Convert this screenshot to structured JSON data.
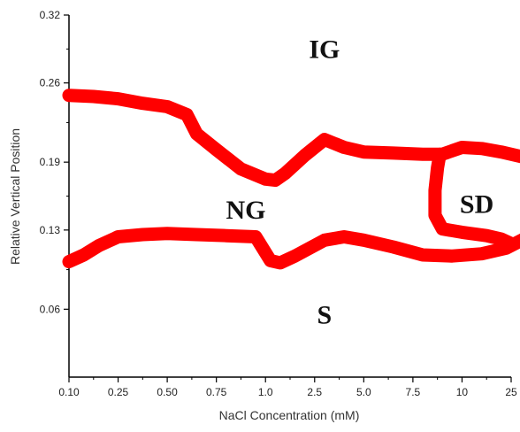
{
  "chart_data": {
    "type": "line",
    "title": "",
    "xlabel": "NaCl Concentration (mM)",
    "ylabel": "Relative Vertical Position",
    "x_tick_labels": [
      "0.10",
      "0.25",
      "0.50",
      "0.75",
      "1.0",
      "2.5",
      "5.0",
      "7.5",
      "10",
      "25"
    ],
    "y_ticks": [
      0.06,
      0.13,
      0.19,
      0.26,
      0.32
    ],
    "y_tick_labels": [
      "0.06",
      "0.13",
      "0.19",
      "0.26",
      "0.32"
    ],
    "ylim": [
      0.0,
      0.32
    ],
    "grid": false,
    "line_color": "#ff0000",
    "regions": [
      {
        "label": "IG",
        "x_index": 5.2,
        "y": 0.29
      },
      {
        "label": "NG",
        "x_index": 3.6,
        "y": 0.148
      },
      {
        "label": "SD",
        "x_index": 8.3,
        "y": 0.153
      },
      {
        "label": "S",
        "x_index": 5.2,
        "y": 0.055
      }
    ],
    "boundaries": [
      {
        "name": "",
        "points": [
          [
            0.0,
            0.249
          ],
          [
            0.5,
            0.248
          ],
          [
            1.0,
            0.246
          ],
          [
            1.5,
            0.242
          ],
          [
            2.0,
            0.239
          ],
          [
            2.4,
            0.232
          ],
          [
            2.6,
            0.215
          ],
          [
            3.0,
            0.201
          ],
          [
            3.5,
            0.184
          ],
          [
            4.0,
            0.175
          ],
          [
            4.2,
            0.174
          ],
          [
            4.4,
            0.18
          ],
          [
            4.8,
            0.196
          ],
          [
            5.2,
            0.21
          ],
          [
            5.6,
            0.203
          ],
          [
            6.0,
            0.199
          ],
          [
            6.6,
            0.198
          ],
          [
            7.2,
            0.197
          ],
          [
            7.6,
            0.197
          ],
          [
            8.0,
            0.203
          ],
          [
            8.4,
            0.202
          ],
          [
            8.8,
            0.199
          ],
          [
            9.2,
            0.195
          ],
          [
            10.0,
            0.185
          ]
        ]
      },
      {
        "name": "",
        "points": [
          [
            0.0,
            0.102
          ],
          [
            0.3,
            0.108
          ],
          [
            0.6,
            0.116
          ],
          [
            1.0,
            0.124
          ],
          [
            1.5,
            0.126
          ],
          [
            2.0,
            0.127
          ],
          [
            2.6,
            0.126
          ],
          [
            3.2,
            0.125
          ],
          [
            3.8,
            0.124
          ],
          [
            4.1,
            0.103
          ],
          [
            4.3,
            0.101
          ],
          [
            4.6,
            0.107
          ],
          [
            5.2,
            0.121
          ],
          [
            5.6,
            0.124
          ],
          [
            6.0,
            0.121
          ],
          [
            6.6,
            0.115
          ],
          [
            7.2,
            0.108
          ],
          [
            7.8,
            0.107
          ],
          [
            8.4,
            0.109
          ],
          [
            8.9,
            0.114
          ],
          [
            9.3,
            0.123
          ],
          [
            9.7,
            0.136
          ],
          [
            10.0,
            0.147
          ]
        ]
      },
      {
        "name": "",
        "points": [
          [
            7.55,
            0.197
          ],
          [
            7.5,
            0.185
          ],
          [
            7.45,
            0.165
          ],
          [
            7.45,
            0.143
          ],
          [
            7.6,
            0.131
          ],
          [
            8.0,
            0.128
          ],
          [
            8.5,
            0.125
          ],
          [
            8.8,
            0.122
          ],
          [
            9.0,
            0.118
          ]
        ]
      }
    ]
  }
}
